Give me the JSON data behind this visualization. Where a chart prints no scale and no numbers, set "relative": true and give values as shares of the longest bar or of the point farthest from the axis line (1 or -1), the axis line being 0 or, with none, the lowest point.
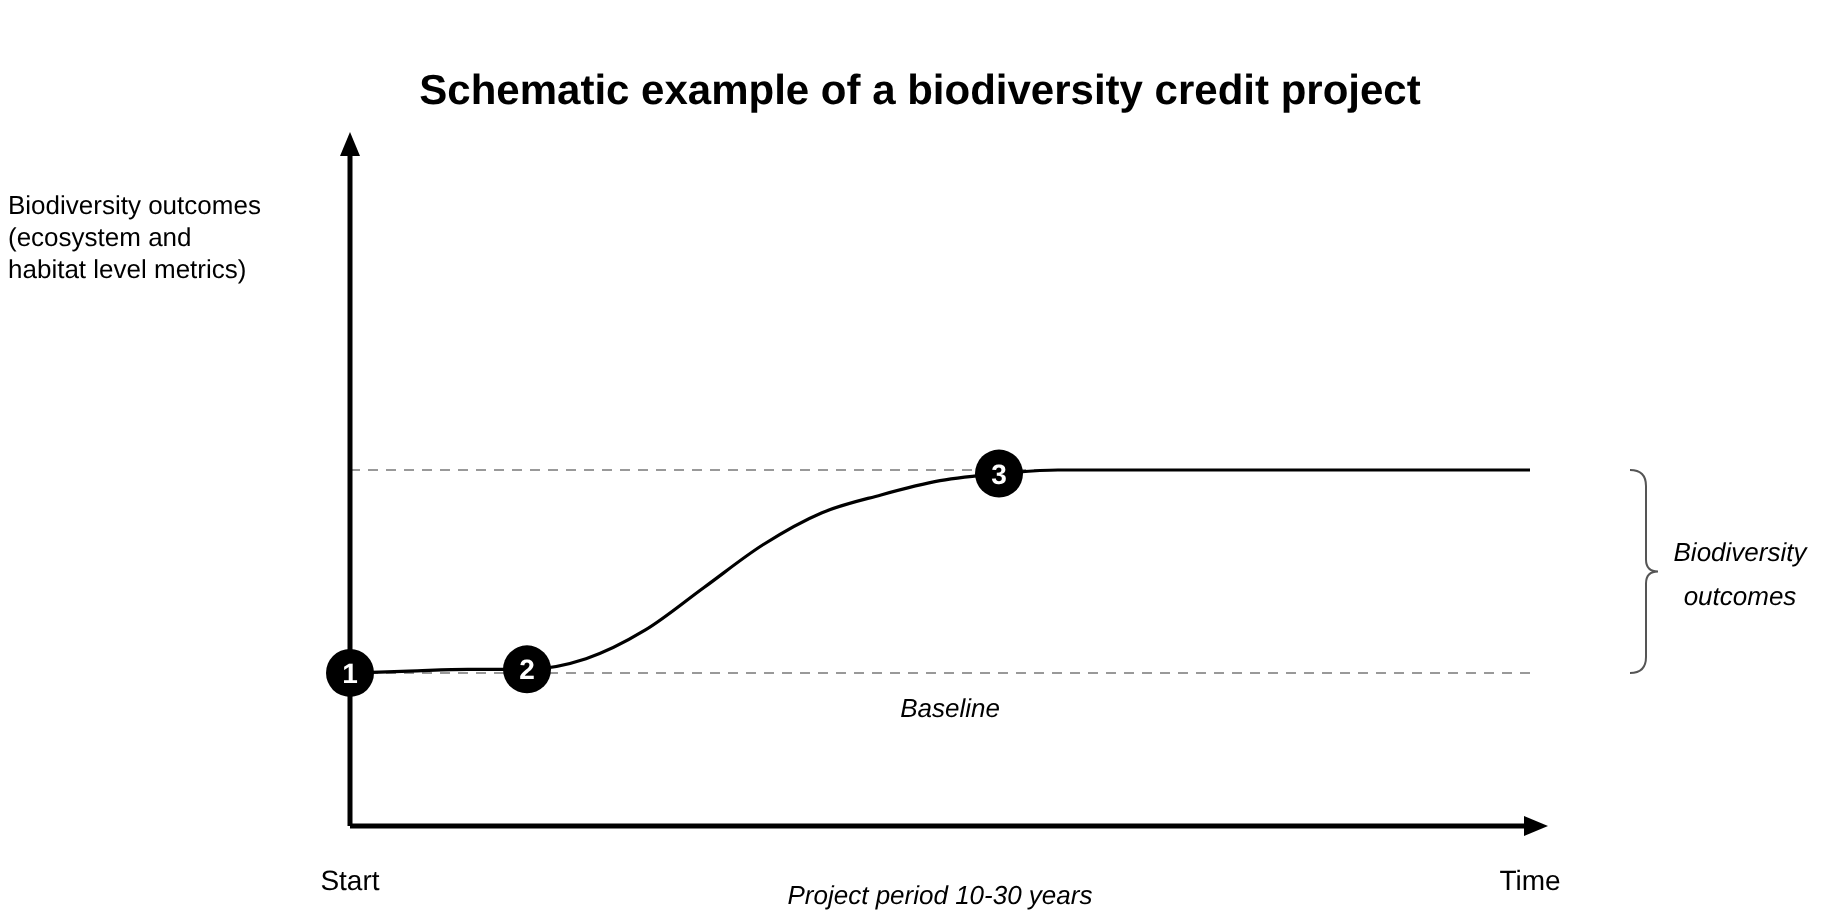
{
  "chart_data": {
    "type": "line",
    "title": "Schematic example of a biodiversity credit project",
    "xlabel": "Project period 10-30 years",
    "relative": true,
    "categories": [
      "Start",
      null,
      null,
      null,
      null,
      null,
      null,
      null,
      null,
      null,
      null,
      null,
      null,
      null,
      null,
      null,
      null,
      null,
      null,
      null,
      "Time"
    ],
    "series": [
      {
        "color": "#000000",
        "values": [
          0.43,
          0.435,
          0.44,
          0.44,
          0.47,
          0.55,
          0.67,
          0.79,
          0.88,
          0.93,
          0.97,
          0.99,
          1,
          1,
          1,
          1,
          1,
          1,
          1,
          1,
          1
        ]
      },
      {
        "type": "scatter",
        "color": "#000000",
        "marker": "circle",
        "values": [
          0.43,
          null,
          null,
          0.44,
          null,
          null,
          null,
          null,
          null,
          null,
          null,
          0.99,
          null,
          null,
          null,
          null,
          null,
          null,
          null,
          null,
          null
        ]
      }
    ],
    "ref_lines": [
      {
        "axis": "y",
        "value": 0.43,
        "label": "Baseline",
        "line_style": "dashed",
        "color": "#999999"
      },
      {
        "axis": "y",
        "value": 1,
        "line_style": "dashed",
        "color": "#999999"
      }
    ],
    "annotations": [
      {
        "text": "1",
        "y": 0.43
      },
      {
        "text": "2",
        "y": 0.44
      },
      {
        "text": "3",
        "y": 0.99
      },
      "Biodiversity outcomes\n(ecosystem and\nhabitat level metrics)",
      "Biodiversity outcomes"
    ]
  }
}
